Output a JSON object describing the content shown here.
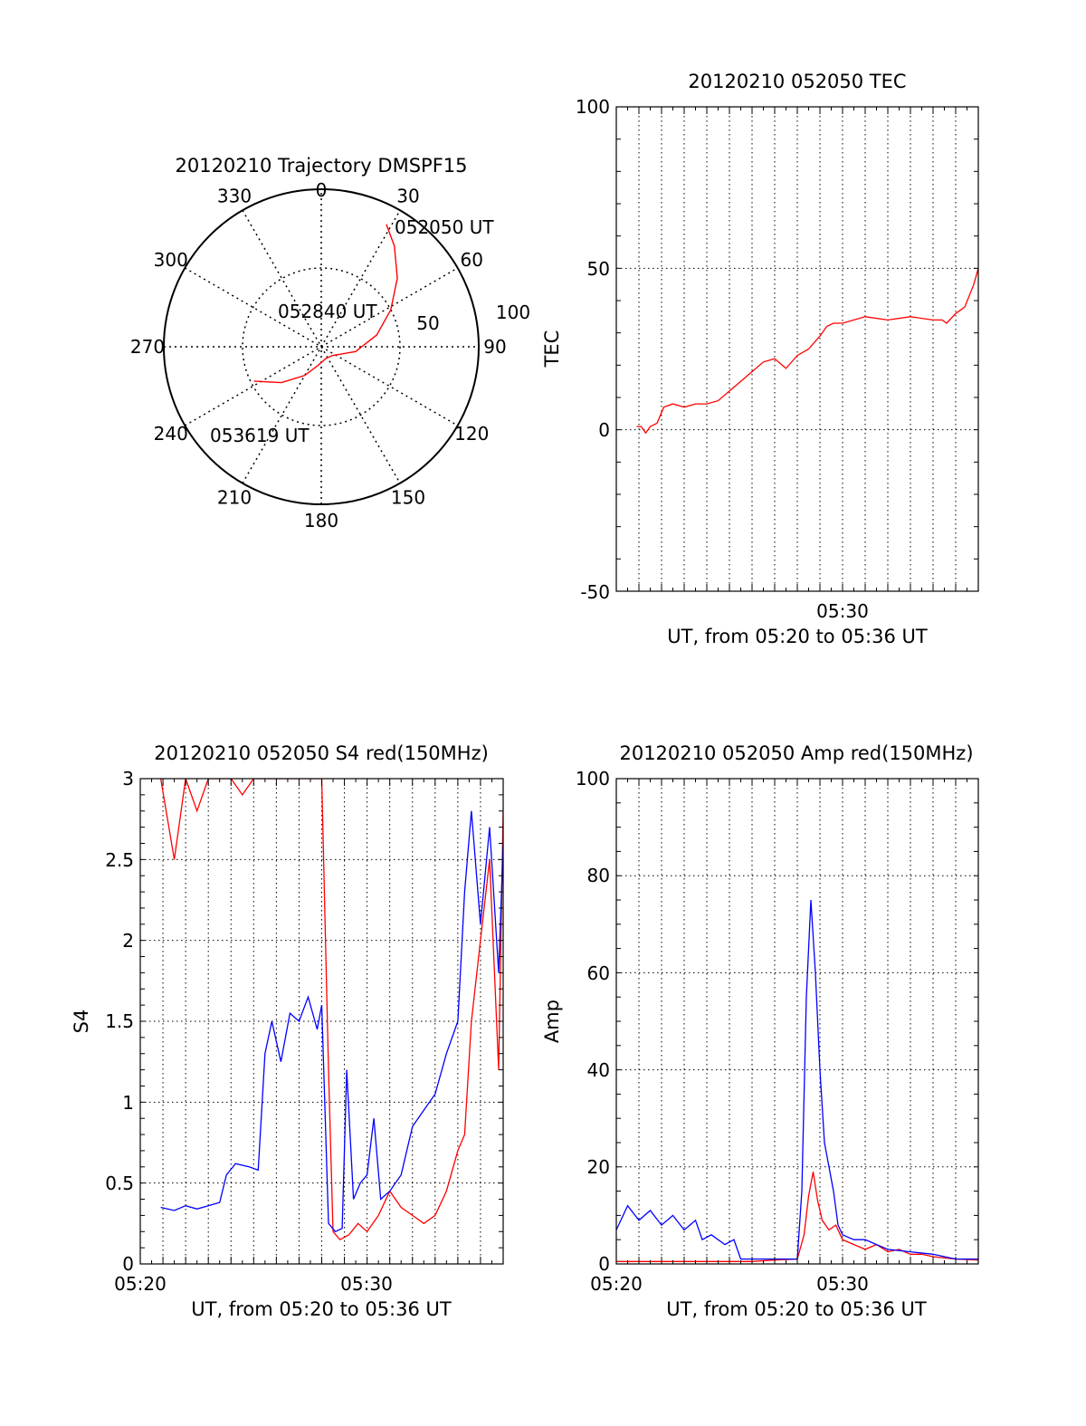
{
  "colors": {
    "red": "#ff0000",
    "blue": "#0000ff",
    "axis": "#000000",
    "grid": "#000000"
  },
  "chart_data": [
    {
      "type": "polar",
      "title": "20120210 Trajectory DMSPF15",
      "theta_labels": [
        "0",
        "30",
        "60",
        "90",
        "120",
        "150",
        "180",
        "210",
        "240",
        "270",
        "300",
        "330"
      ],
      "radius_max": 100,
      "radius_labels": [
        "50",
        "100"
      ],
      "grid": true,
      "trajectory": {
        "color": "red",
        "points": [
          [
            28,
            88
          ],
          [
            36,
            79
          ],
          [
            48,
            65
          ],
          [
            62,
            50
          ],
          [
            78,
            36
          ],
          [
            98,
            22
          ],
          [
            128,
            9
          ],
          [
            158,
            8
          ],
          [
            190,
            12
          ],
          [
            210,
            21
          ],
          [
            228,
            34
          ],
          [
            238,
            42
          ],
          [
            243,
            48
          ]
        ]
      },
      "annotations": [
        "052050 UT",
        "052840 UT",
        "053619 UT"
      ]
    },
    {
      "type": "line",
      "title": "20120210 052050 TEC",
      "xlabel": "UT, from 05:20 to 05:36 UT",
      "ylabel": "TEC",
      "x_tick_labels": [
        "05:30"
      ],
      "y_tick_labels": [
        "100",
        "50",
        "0",
        "-50"
      ],
      "xlim": [
        0,
        16
      ],
      "ylim": [
        -50,
        100
      ],
      "grid": true,
      "series": [
        {
          "color": "red",
          "x": [
            0.9,
            1.1,
            1.3,
            1.5,
            1.8,
            2.1,
            2.5,
            3.0,
            3.5,
            4.0,
            4.5,
            5.0,
            5.5,
            6.0,
            6.5,
            7.0,
            7.5,
            8.0,
            8.5,
            9.0,
            9.3,
            9.6,
            10.0,
            11.0,
            12.0,
            13.0,
            14.0,
            14.4,
            14.6,
            15.0,
            15.4,
            15.8,
            16.0
          ],
          "y": [
            1,
            1,
            -1,
            1,
            2,
            7,
            8,
            7,
            8,
            8,
            9,
            12,
            15,
            18,
            21,
            22,
            19,
            23,
            25,
            29,
            32,
            33,
            33,
            35,
            34,
            35,
            34,
            34,
            33,
            36,
            38,
            45,
            50
          ]
        }
      ]
    },
    {
      "type": "line",
      "title": "20120210 052050 S4 red(150MHz)",
      "xlabel": "UT, from 05:20 to 05:36 UT",
      "ylabel": "S4",
      "x_tick_labels": [
        "05:20",
        "05:30"
      ],
      "y_tick_labels": [
        "3",
        "2.5",
        "2",
        "1.5",
        "1",
        "0.5",
        "0"
      ],
      "xlim": [
        0,
        16
      ],
      "ylim": [
        0,
        3
      ],
      "grid": true,
      "series": [
        {
          "color": "red",
          "x": [
            0.9,
            1.5,
            2,
            2.5,
            3,
            3.5,
            4,
            4.5,
            5,
            5.5,
            6,
            6.5,
            7,
            7.5,
            8,
            8.3,
            8.5,
            8.8,
            9.2,
            9.6,
            10,
            10.5,
            11,
            11.5,
            12,
            12.5,
            13,
            13.5,
            14,
            14.3,
            14.6,
            15,
            15.4,
            15.8,
            16
          ],
          "y": [
            3,
            2.5,
            3,
            2.8,
            3,
            3,
            3,
            2.9,
            3,
            3,
            3,
            3,
            3,
            3,
            3,
            1.2,
            0.2,
            0.15,
            0.18,
            0.25,
            0.2,
            0.3,
            0.45,
            0.35,
            0.3,
            0.25,
            0.3,
            0.45,
            0.7,
            0.8,
            1.5,
            2.0,
            2.5,
            1.2,
            2.8
          ]
        },
        {
          "color": "blue",
          "x": [
            0.9,
            1.5,
            2,
            2.5,
            3,
            3.5,
            3.8,
            4.2,
            4.8,
            5.2,
            5.5,
            5.8,
            6.2,
            6.6,
            7,
            7.4,
            7.8,
            8.0,
            8.3,
            8.6,
            8.9,
            9.1,
            9.4,
            9.7,
            10,
            10.3,
            10.6,
            11,
            11.5,
            12,
            12.5,
            13,
            13.5,
            14,
            14.3,
            14.6,
            15,
            15.4,
            15.8,
            16
          ],
          "y": [
            0.35,
            0.33,
            0.36,
            0.34,
            0.36,
            0.38,
            0.55,
            0.62,
            0.6,
            0.58,
            1.3,
            1.5,
            1.25,
            1.55,
            1.5,
            1.65,
            1.45,
            1.6,
            0.25,
            0.2,
            0.22,
            1.2,
            0.4,
            0.5,
            0.55,
            0.9,
            0.4,
            0.45,
            0.55,
            0.85,
            0.95,
            1.05,
            1.3,
            1.5,
            2.3,
            2.8,
            2.1,
            2.7,
            1.8,
            2.6
          ]
        }
      ]
    },
    {
      "type": "line",
      "title": "20120210 052050 Amp red(150MHz)",
      "xlabel": "UT, from 05:20 to 05:36 UT",
      "ylabel": "Amp",
      "x_tick_labels": [
        "05:20",
        "05:30"
      ],
      "y_tick_labels": [
        "100",
        "80",
        "60",
        "40",
        "20",
        "0"
      ],
      "xlim": [
        0,
        16
      ],
      "ylim": [
        0,
        100
      ],
      "grid": true,
      "series": [
        {
          "color": "red",
          "x": [
            0,
            1,
            2,
            3,
            4,
            5,
            6,
            7,
            8,
            8.3,
            8.5,
            8.7,
            8.9,
            9.1,
            9.4,
            9.7,
            10,
            10.5,
            11,
            11.5,
            12,
            12.5,
            13,
            13.5,
            14,
            15,
            16
          ],
          "y": [
            0.5,
            0.5,
            0.5,
            0.5,
            0.5,
            0.5,
            0.5,
            0.8,
            1,
            6,
            14,
            19,
            13,
            9,
            7,
            8,
            5,
            4,
            3,
            4,
            2.5,
            3,
            2,
            2,
            1.5,
            1,
            0.8
          ]
        },
        {
          "color": "blue",
          "x": [
            0,
            0.5,
            1,
            1.5,
            2,
            2.5,
            3,
            3.5,
            3.8,
            4.2,
            4.8,
            5.2,
            5.5,
            6,
            7,
            8,
            8.2,
            8.4,
            8.6,
            8.8,
            9.0,
            9.2,
            9.4,
            9.6,
            9.8,
            10,
            10.5,
            11,
            11.5,
            12,
            13,
            14,
            15,
            16
          ],
          "y": [
            7,
            12,
            9,
            11,
            8,
            10,
            7,
            9,
            5,
            6,
            4,
            5,
            1,
            1,
            1,
            1,
            15,
            55,
            75,
            60,
            40,
            25,
            20,
            15,
            8,
            6,
            5,
            5,
            4,
            3,
            2.5,
            2,
            1,
            1
          ]
        }
      ]
    }
  ]
}
